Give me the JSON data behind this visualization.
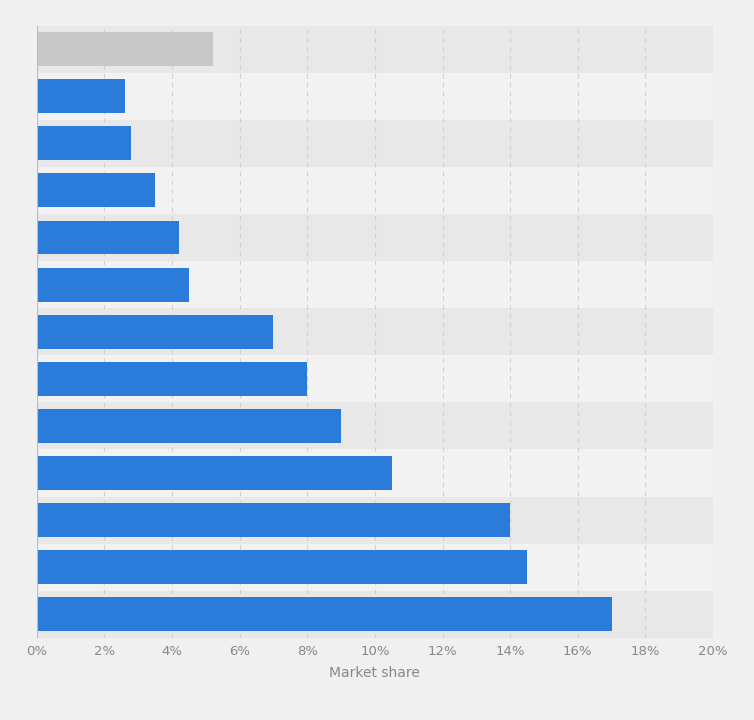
{
  "values": [
    17.0,
    14.5,
    14.0,
    10.5,
    9.0,
    8.0,
    7.0,
    4.5,
    4.2,
    3.5,
    2.8,
    2.6,
    5.2
  ],
  "colors": [
    "#2b7bdb",
    "#2b7bdb",
    "#2b7bdb",
    "#2b7bdb",
    "#2b7bdb",
    "#2b7bdb",
    "#2b7bdb",
    "#2b7bdb",
    "#2b7bdb",
    "#2b7bdb",
    "#2b7bdb",
    "#2b7bdb",
    "#c8c8c8"
  ],
  "xlabel": "Market share",
  "xlim": [
    0,
    20
  ],
  "xticks": [
    0,
    2,
    4,
    6,
    8,
    10,
    12,
    14,
    16,
    18,
    20
  ],
  "outer_bg": "#f0f0f0",
  "bar_bg_dark": "#e8e8e8",
  "bar_bg_light": "#f2f2f2",
  "grid_color": "#d0d0d0",
  "bar_height": 0.72,
  "xlabel_fontsize": 10,
  "tick_fontsize": 9.5,
  "tick_color": "#888888",
  "label_color": "#888888"
}
